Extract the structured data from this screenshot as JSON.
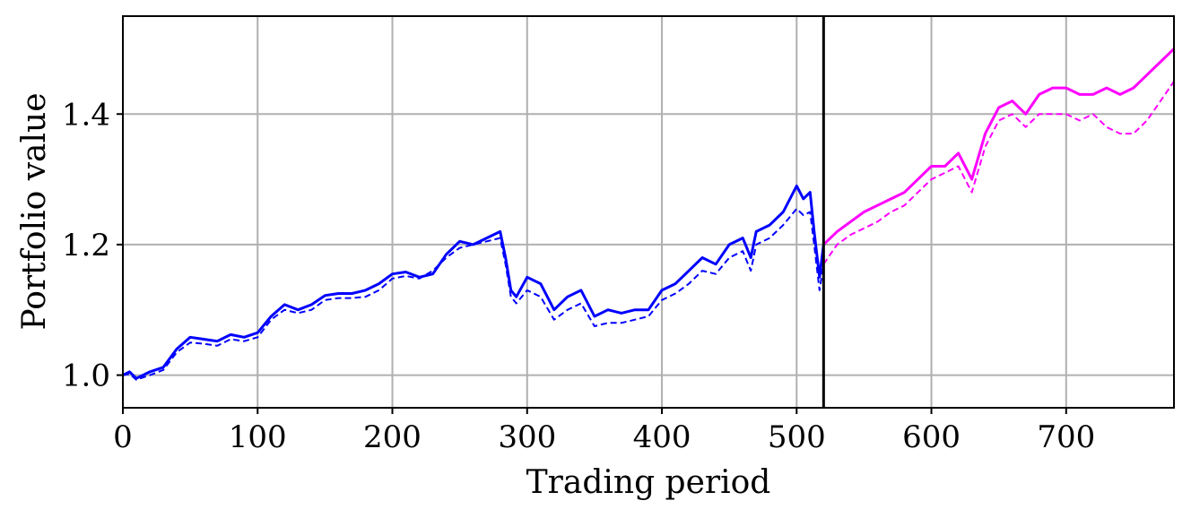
{
  "chart_data": {
    "type": "line",
    "xlabel": "Trading period",
    "ylabel": "Portfolio value",
    "xlim": [
      0,
      780
    ],
    "ylim": [
      0.95,
      1.55
    ],
    "xticks": [
      0,
      100,
      200,
      300,
      400,
      500,
      600,
      700
    ],
    "xtick_labels": [
      "0",
      "100",
      "200",
      "300",
      "400",
      "500",
      "600",
      "700"
    ],
    "yticks": [
      1.0,
      1.2,
      1.4
    ],
    "ytick_labels": [
      "1.0",
      "1.2",
      "1.4"
    ],
    "grid": true,
    "split_x": 520,
    "colors": {
      "train": "#0000ff",
      "test": "#ff00ff",
      "split": "#000000",
      "grid": "#b0b0b0"
    },
    "series": [
      {
        "line_style": "solid",
        "x": [
          0,
          5,
          10,
          20,
          30,
          40,
          50,
          60,
          70,
          80,
          90,
          100,
          110,
          120,
          130,
          140,
          150,
          160,
          170,
          180,
          190,
          200,
          210,
          220,
          230,
          240,
          250,
          260,
          270,
          280,
          284,
          288,
          292,
          300,
          310,
          320,
          330,
          340,
          350,
          360,
          370,
          380,
          390,
          400,
          410,
          420,
          430,
          440,
          450,
          460,
          466,
          470,
          480,
          490,
          500,
          505,
          510,
          513,
          517,
          520,
          530,
          540,
          550,
          560,
          570,
          580,
          590,
          600,
          610,
          620,
          630,
          640,
          650,
          660,
          670,
          680,
          690,
          700,
          710,
          720,
          730,
          740,
          750,
          760,
          770,
          780
        ],
        "y": [
          1.0,
          1.005,
          0.995,
          1.005,
          1.012,
          1.04,
          1.058,
          1.055,
          1.052,
          1.062,
          1.058,
          1.065,
          1.09,
          1.108,
          1.1,
          1.108,
          1.122,
          1.125,
          1.125,
          1.13,
          1.14,
          1.155,
          1.158,
          1.15,
          1.155,
          1.185,
          1.205,
          1.2,
          1.21,
          1.22,
          1.18,
          1.13,
          1.12,
          1.15,
          1.14,
          1.1,
          1.12,
          1.13,
          1.09,
          1.1,
          1.095,
          1.1,
          1.1,
          1.13,
          1.14,
          1.16,
          1.18,
          1.17,
          1.2,
          1.21,
          1.18,
          1.22,
          1.23,
          1.25,
          1.29,
          1.27,
          1.28,
          1.22,
          1.15,
          1.2,
          1.22,
          1.235,
          1.25,
          1.26,
          1.27,
          1.28,
          1.3,
          1.32,
          1.32,
          1.34,
          1.3,
          1.37,
          1.41,
          1.42,
          1.4,
          1.43,
          1.44,
          1.44,
          1.43,
          1.43,
          1.44,
          1.43,
          1.44,
          1.46,
          1.48,
          1.5
        ]
      },
      {
        "line_style": "dashed",
        "x": [
          0,
          5,
          10,
          20,
          30,
          40,
          50,
          60,
          70,
          80,
          90,
          100,
          110,
          120,
          130,
          140,
          150,
          160,
          170,
          180,
          190,
          200,
          210,
          220,
          230,
          240,
          250,
          260,
          270,
          280,
          284,
          288,
          292,
          300,
          310,
          320,
          330,
          340,
          350,
          360,
          370,
          380,
          390,
          400,
          410,
          420,
          430,
          440,
          450,
          460,
          466,
          470,
          480,
          490,
          500,
          505,
          510,
          513,
          517,
          520,
          530,
          540,
          550,
          560,
          570,
          580,
          590,
          600,
          610,
          620,
          630,
          640,
          650,
          660,
          670,
          680,
          690,
          700,
          710,
          720,
          730,
          740,
          750,
          760,
          770,
          780
        ],
        "y": [
          1.0,
          1.002,
          0.993,
          1.0,
          1.008,
          1.035,
          1.05,
          1.048,
          1.045,
          1.055,
          1.052,
          1.058,
          1.085,
          1.1,
          1.095,
          1.1,
          1.115,
          1.118,
          1.118,
          1.12,
          1.13,
          1.148,
          1.152,
          1.148,
          1.16,
          1.18,
          1.195,
          1.2,
          1.205,
          1.21,
          1.17,
          1.12,
          1.11,
          1.13,
          1.12,
          1.085,
          1.1,
          1.11,
          1.075,
          1.08,
          1.08,
          1.085,
          1.09,
          1.115,
          1.125,
          1.14,
          1.16,
          1.155,
          1.18,
          1.19,
          1.16,
          1.2,
          1.21,
          1.23,
          1.255,
          1.245,
          1.25,
          1.2,
          1.13,
          1.17,
          1.2,
          1.215,
          1.225,
          1.235,
          1.25,
          1.26,
          1.28,
          1.3,
          1.31,
          1.32,
          1.28,
          1.35,
          1.39,
          1.4,
          1.38,
          1.4,
          1.4,
          1.4,
          1.39,
          1.4,
          1.38,
          1.37,
          1.37,
          1.39,
          1.42,
          1.45
        ]
      }
    ]
  }
}
